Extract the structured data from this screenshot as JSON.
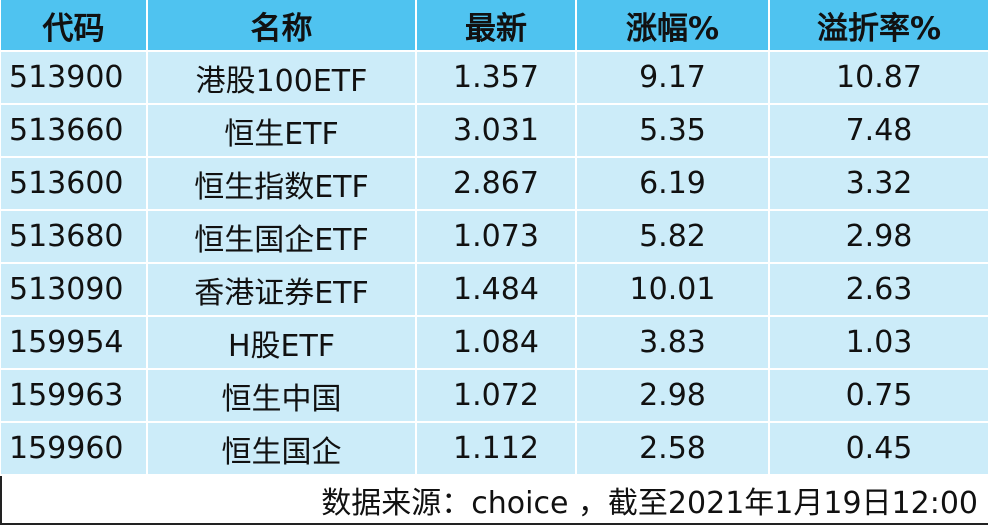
{
  "colors": {
    "header_bg": "#4fc3f0",
    "row_bg": "#ccecf9",
    "text": "#111111"
  },
  "table": {
    "headers": [
      "代码",
      "名称",
      "最新",
      "涨幅%",
      "溢折率%"
    ],
    "rows": [
      [
        "513900",
        "港股100ETF",
        "1.357",
        "9.17",
        "10.87"
      ],
      [
        "513660",
        "恒生ETF",
        "3.031",
        "5.35",
        "7.48"
      ],
      [
        "513600",
        "恒生指数ETF",
        "2.867",
        "6.19",
        "3.32"
      ],
      [
        "513680",
        "恒生国企ETF",
        "1.073",
        "5.82",
        "2.98"
      ],
      [
        "513090",
        "香港证券ETF",
        "1.484",
        "10.01",
        "2.63"
      ],
      [
        "159954",
        "H股ETF",
        "1.084",
        "3.83",
        "1.03"
      ],
      [
        "159963",
        "恒生中国",
        "1.072",
        "2.98",
        "0.75"
      ],
      [
        "159960",
        "恒生国企",
        "1.112",
        "2.58",
        "0.45"
      ]
    ],
    "footer": "数据来源：choice ，截至2021年1月19日12:00"
  }
}
